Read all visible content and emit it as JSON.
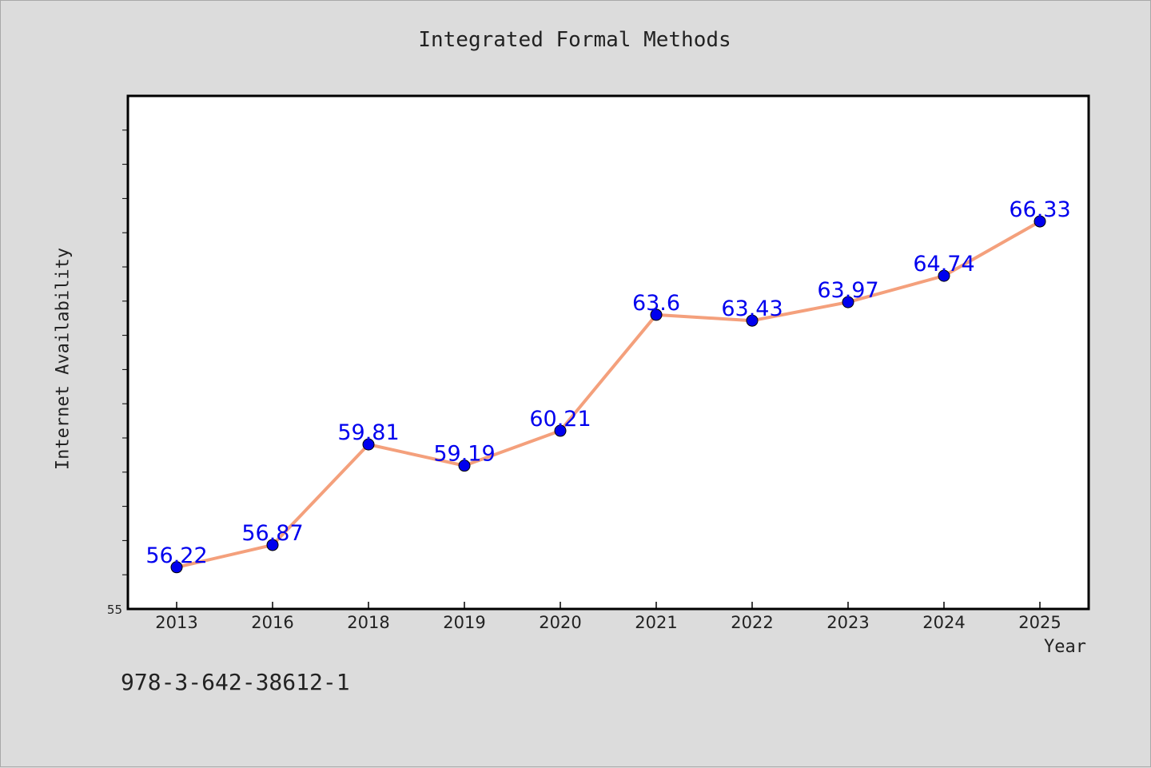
{
  "chart_data": {
    "type": "line",
    "title": "Integrated Formal Methods",
    "xlabel": "Year",
    "ylabel": "Internet Availability",
    "categories": [
      "2013",
      "2016",
      "2018",
      "2019",
      "2020",
      "2021",
      "2022",
      "2023",
      "2024",
      "2025"
    ],
    "series": [
      {
        "values": [
          56.22,
          56.87,
          59.81,
          59.19,
          60.21,
          63.6,
          63.43,
          63.97,
          64.74,
          66.33
        ],
        "labels": [
          "56.22",
          "56.87",
          "59.81",
          "59.19",
          "60.21",
          "63.6",
          "63.43",
          "63.97",
          "64.74",
          "66.33"
        ],
        "line_color": "#f4a07c",
        "marker_color": "#0000ee",
        "label_color": "#0000ee"
      }
    ],
    "ylim": [
      55,
      70
    ],
    "ytick_labels": [
      "55"
    ],
    "grid": false
  },
  "footnote": "978-3-642-38612-1"
}
